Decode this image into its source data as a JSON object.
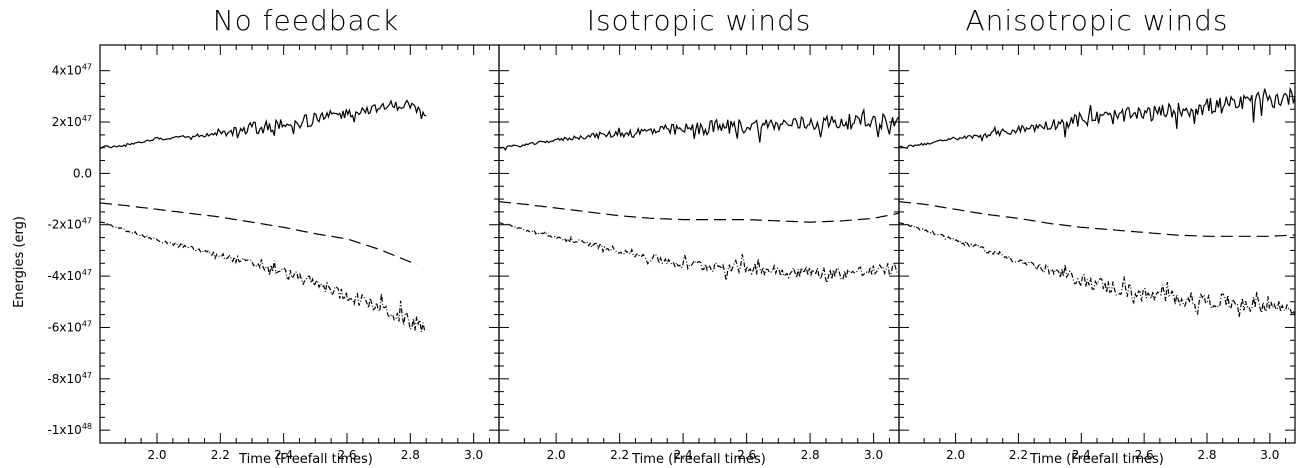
{
  "chart_data": [
    {
      "type": "line",
      "title": "No feedback",
      "xlabel": "Time (Freefall times)",
      "ylabel": "Energies (erg)",
      "xlim": [
        1.82,
        3.08
      ],
      "ylim": [
        -1.05e+48,
        5e+47
      ],
      "xticks": [
        "2.0",
        "2.2",
        "2.4",
        "2.6",
        "2.8",
        "3.0"
      ],
      "yticks": [
        {
          "value": 4e+47,
          "mant": "4x10",
          "exp": "47"
        },
        {
          "value": 2e+47,
          "mant": "2x10",
          "exp": "47"
        },
        {
          "value": 0,
          "mant": "0.0",
          "exp": ""
        },
        {
          "value": -2e+47,
          "mant": "-2x10",
          "exp": "47"
        },
        {
          "value": -4e+47,
          "mant": "-4x10",
          "exp": "47"
        },
        {
          "value": -6e+47,
          "mant": "-6x10",
          "exp": "47"
        },
        {
          "value": -8e+47,
          "mant": "-8x10",
          "exp": "47"
        },
        {
          "value": -1e+48,
          "mant": "-1x10",
          "exp": "48"
        }
      ],
      "series": [
        {
          "style": "solid",
          "x": [
            1.82,
            1.9,
            2.0,
            2.1,
            2.2,
            2.3,
            2.4,
            2.5,
            2.6,
            2.7,
            2.8,
            2.85
          ],
          "values": [
            1e+47,
            1.1e+47,
            1.35e+47,
            1.45e+47,
            1.55e+47,
            1.75e+47,
            1.9e+47,
            2.1e+47,
            2.35e+47,
            2.55e+47,
            2.7e+47,
            2.2e+47
          ],
          "noise": [
            5e+45,
            5e+45,
            6e+45,
            8e+45,
            1e+46,
            2.5e+46,
            2.5e+46,
            2.5e+46,
            2e+46,
            1.5e+46,
            2e+46,
            1e+46
          ]
        },
        {
          "style": "dashed",
          "x": [
            1.82,
            1.9,
            2.0,
            2.1,
            2.2,
            2.3,
            2.4,
            2.5,
            2.6,
            2.7,
            2.8,
            2.82
          ],
          "values": [
            -1.15e+47,
            -1.25e+47,
            -1.4e+47,
            -1.55e+47,
            -1.7e+47,
            -1.9e+47,
            -2.1e+47,
            -2.35e+47,
            -2.55e+47,
            -2.95e+47,
            -3.45e+47,
            -3.55e+47
          ],
          "noise": [
            0,
            0,
            0,
            0,
            0,
            0,
            0,
            0,
            0,
            0,
            0,
            0
          ]
        },
        {
          "style": "dashdot",
          "x": [
            1.82,
            1.9,
            2.0,
            2.1,
            2.2,
            2.3,
            2.4,
            2.5,
            2.6,
            2.7,
            2.8,
            2.85
          ],
          "values": [
            -1.9e+47,
            -2.2e+47,
            -2.6e+47,
            -2.9e+47,
            -3.2e+47,
            -3.5e+47,
            -3.85e+47,
            -4.3e+47,
            -4.75e+47,
            -5.2e+47,
            -5.8e+47,
            -6e+47
          ],
          "noise": [
            3e+45,
            5e+45,
            6e+45,
            8e+45,
            1e+46,
            1.5e+46,
            2e+46,
            2.2e+46,
            2.5e+46,
            2.5e+46,
            3e+46,
            3e+46
          ]
        }
      ]
    },
    {
      "type": "line",
      "title": "Isotropic winds",
      "xlabel": "Time (Freefall times)",
      "xlim": [
        1.82,
        3.08
      ],
      "ylim": [
        -1.05e+48,
        5e+47
      ],
      "xticks": [
        "2.0",
        "2.2",
        "2.4",
        "2.6",
        "2.8",
        "3.0"
      ],
      "series": [
        {
          "style": "solid",
          "x": [
            1.82,
            1.9,
            2.0,
            2.1,
            2.2,
            2.3,
            2.4,
            2.5,
            2.6,
            2.7,
            2.8,
            2.9,
            3.0,
            3.08
          ],
          "values": [
            1e+47,
            1.1e+47,
            1.3e+47,
            1.45e+47,
            1.55e+47,
            1.65e+47,
            1.7e+47,
            1.8e+47,
            1.85e+47,
            1.9e+47,
            1.95e+47,
            2e+47,
            2.05e+47,
            2e+47
          ],
          "noise": [
            5e+45,
            5e+45,
            6e+45,
            1e+46,
            1.5e+46,
            2e+46,
            2.5e+46,
            3e+46,
            3e+46,
            2.5e+46,
            3e+46,
            3e+46,
            3e+46,
            3e+46
          ]
        },
        {
          "style": "dashed",
          "x": [
            1.82,
            1.9,
            2.0,
            2.1,
            2.2,
            2.3,
            2.4,
            2.5,
            2.6,
            2.7,
            2.8,
            2.9,
            3.0,
            3.08
          ],
          "values": [
            -1.1e+47,
            -1.2e+47,
            -1.35e+47,
            -1.5e+47,
            -1.65e+47,
            -1.75e+47,
            -1.8e+47,
            -1.8e+47,
            -1.8e+47,
            -1.85e+47,
            -1.9e+47,
            -1.85e+47,
            -1.75e+47,
            -1.55e+47
          ],
          "noise": [
            0,
            0,
            0,
            0,
            0,
            0,
            0,
            0,
            0,
            0,
            0,
            0,
            0,
            0
          ]
        },
        {
          "style": "dashdot",
          "x": [
            1.82,
            1.9,
            2.0,
            2.1,
            2.2,
            2.3,
            2.4,
            2.5,
            2.6,
            2.7,
            2.8,
            2.9,
            3.0,
            3.08
          ],
          "values": [
            -1.9e+47,
            -2.2e+47,
            -2.5e+47,
            -2.75e+47,
            -3e+47,
            -3.3e+47,
            -3.55e+47,
            -3.6e+47,
            -3.65e+47,
            -3.8e+47,
            -3.85e+47,
            -3.9e+47,
            -3.8e+47,
            -3.7e+47
          ],
          "noise": [
            3e+45,
            5e+45,
            7e+45,
            1e+46,
            1.2e+46,
            1.8e+46,
            2e+46,
            2.5e+46,
            2.5e+46,
            2.5e+46,
            2.5e+46,
            2.5e+46,
            2.5e+46,
            2.5e+46
          ]
        }
      ]
    },
    {
      "type": "line",
      "title": "Anisotropic winds",
      "xlabel": "Time (Freefall times)",
      "xlim": [
        1.82,
        3.08
      ],
      "ylim": [
        -1.05e+48,
        5e+47
      ],
      "xticks": [
        "2.0",
        "2.2",
        "2.4",
        "2.6",
        "2.8",
        "3.0"
      ],
      "series": [
        {
          "style": "solid",
          "x": [
            1.82,
            1.9,
            2.0,
            2.1,
            2.2,
            2.3,
            2.4,
            2.5,
            2.6,
            2.7,
            2.8,
            2.9,
            3.0,
            3.08
          ],
          "values": [
            1e+47,
            1.15e+47,
            1.35e+47,
            1.5e+47,
            1.7e+47,
            1.9e+47,
            2.1e+47,
            2.2e+47,
            2.3e+47,
            2.45e+47,
            2.6e+47,
            2.7e+47,
            2.85e+47,
            3e+47
          ],
          "noise": [
            5e+45,
            5e+45,
            6e+45,
            1e+46,
            1.5e+46,
            2e+46,
            3e+46,
            3e+46,
            3e+46,
            3e+46,
            3.5e+46,
            3.5e+46,
            3.5e+46,
            3.5e+46
          ]
        },
        {
          "style": "dashed",
          "x": [
            1.82,
            1.9,
            2.0,
            2.1,
            2.2,
            2.3,
            2.4,
            2.5,
            2.6,
            2.7,
            2.8,
            2.9,
            3.0,
            3.08
          ],
          "values": [
            -1.1e+47,
            -1.2e+47,
            -1.4e+47,
            -1.6e+47,
            -1.75e+47,
            -1.95e+47,
            -2.1e+47,
            -2.2e+47,
            -2.3e+47,
            -2.4e+47,
            -2.45e+47,
            -2.45e+47,
            -2.45e+47,
            -2.4e+47
          ],
          "noise": [
            0,
            0,
            0,
            0,
            0,
            0,
            0,
            0,
            0,
            0,
            0,
            0,
            0,
            0
          ]
        },
        {
          "style": "dashdot",
          "x": [
            1.82,
            1.9,
            2.0,
            2.1,
            2.2,
            2.3,
            2.4,
            2.5,
            2.6,
            2.7,
            2.8,
            2.9,
            3.0,
            3.08
          ],
          "values": [
            -1.9e+47,
            -2.2e+47,
            -2.6e+47,
            -3e+47,
            -3.4e+47,
            -3.8e+47,
            -4.15e+47,
            -4.45e+47,
            -4.75e+47,
            -4.85e+47,
            -4.95e+47,
            -5.05e+47,
            -5.15e+47,
            -5.3e+47
          ],
          "noise": [
            3e+45,
            5e+45,
            8e+45,
            1e+46,
            1.5e+46,
            2e+46,
            2.5e+46,
            3e+46,
            3e+46,
            3e+46,
            3e+46,
            3e+46,
            3e+46,
            3e+46
          ]
        }
      ]
    }
  ]
}
